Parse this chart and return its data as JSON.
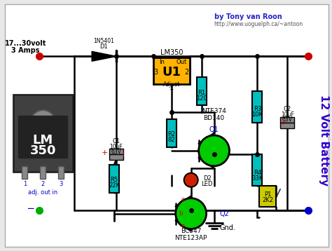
{
  "bg_color": "#e8e8e8",
  "border_color": "#888888",
  "title_text": "by Tony van Roon",
  "subtitle_text": "http://www.uoguelph.ca/~antoon",
  "battery_label": "12 Volt Battery",
  "gnd_label": "Gnd.",
  "input_label1": "17...30volt",
  "input_label2": "3 Amps",
  "adj_label": "adj. out in",
  "lm350_label": "LM350",
  "u1_label": "U1",
  "u1_color": "#FFB300",
  "wire_color": "#000000",
  "component_cyan": "#00BFBF",
  "component_green": "#00CC00",
  "component_red": "#CC0000",
  "component_yellow": "#CCCC00",
  "component_gray": "#888888",
  "text_blue": "#0000CC",
  "text_purple": "#6600CC",
  "schematic_white": "#ffffff",
  "pin_colors": {
    "plus": "#CC0000",
    "minus": "#00BB00"
  },
  "blue_dot_color": "#0000FF"
}
